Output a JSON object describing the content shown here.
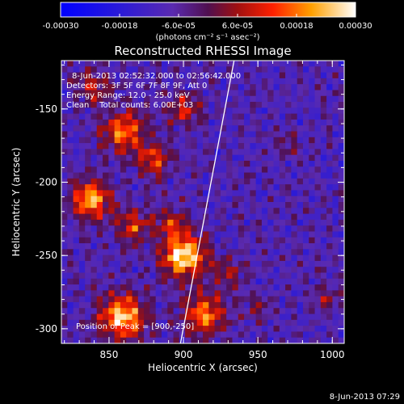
{
  "chart_data": {
    "type": "heatmap",
    "title": "Reconstructed RHESSI Image",
    "xlabel": "Heliocentric X (arcsec)",
    "ylabel": "Heliocentric Y (arcsec)",
    "xlim": [
      818,
      1008
    ],
    "ylim": [
      -310,
      -117
    ],
    "x_ticks": [
      850,
      900,
      950,
      1000
    ],
    "y_ticks": [
      -150,
      -200,
      -250,
      -300
    ],
    "colorbar": {
      "range": [
        -0.0003,
        0.0003
      ],
      "ticks": [
        "-0.00030",
        "-0.00018",
        "-6.0e-05",
        "6.0e-05",
        "0.00018",
        "0.00030"
      ],
      "tick_values": [
        -0.0003,
        -0.00018,
        -6e-05,
        6e-05,
        0.00018,
        0.0003
      ],
      "units": "(photons cm⁻² s⁻¹ asec⁻²)"
    },
    "annotations": [
      "8-Jun-2013 02:52:32.000 to 02:56:42.000",
      "Detectors: 3F 5F 6F 7F 8F 9F, Att 0",
      "Energy Range: 12.0 - 25.0 keV",
      "Clean    Total counts: 6.00E+03"
    ],
    "peak_label": "Position of Peak = [900,-250]",
    "peak": [
      900,
      -250
    ],
    "limb_line": [
      [
        898,
        -310
      ],
      [
        934,
        -117
      ]
    ],
    "sources": [
      {
        "x": 900,
        "y": -250,
        "amp": 1.0,
        "r": 10
      },
      {
        "x": 859,
        "y": -292,
        "amp": 0.85,
        "r": 11
      },
      {
        "x": 914,
        "y": -290,
        "amp": 0.7,
        "r": 10
      },
      {
        "x": 838,
        "y": -212,
        "amp": 0.8,
        "r": 9
      },
      {
        "x": 860,
        "y": -165,
        "amp": 0.65,
        "r": 10
      },
      {
        "x": 880,
        "y": -185,
        "amp": 0.55,
        "r": 8
      },
      {
        "x": 866,
        "y": -230,
        "amp": 0.5,
        "r": 8
      },
      {
        "x": 892,
        "y": -228,
        "amp": 0.45,
        "r": 7
      },
      {
        "x": 930,
        "y": -262,
        "amp": 0.35,
        "r": 7
      },
      {
        "x": 900,
        "y": -150,
        "amp": 0.4,
        "r": 8
      },
      {
        "x": 840,
        "y": -135,
        "amp": 0.4,
        "r": 8
      },
      {
        "x": 950,
        "y": -285,
        "amp": 0.25,
        "r": 6
      },
      {
        "x": 995,
        "y": -280,
        "amp": 0.25,
        "r": 6
      },
      {
        "x": 970,
        "y": -175,
        "amp": 0.2,
        "r": 6
      }
    ]
  },
  "footer": {
    "timestamp": "8-Jun-2013 07:29"
  }
}
